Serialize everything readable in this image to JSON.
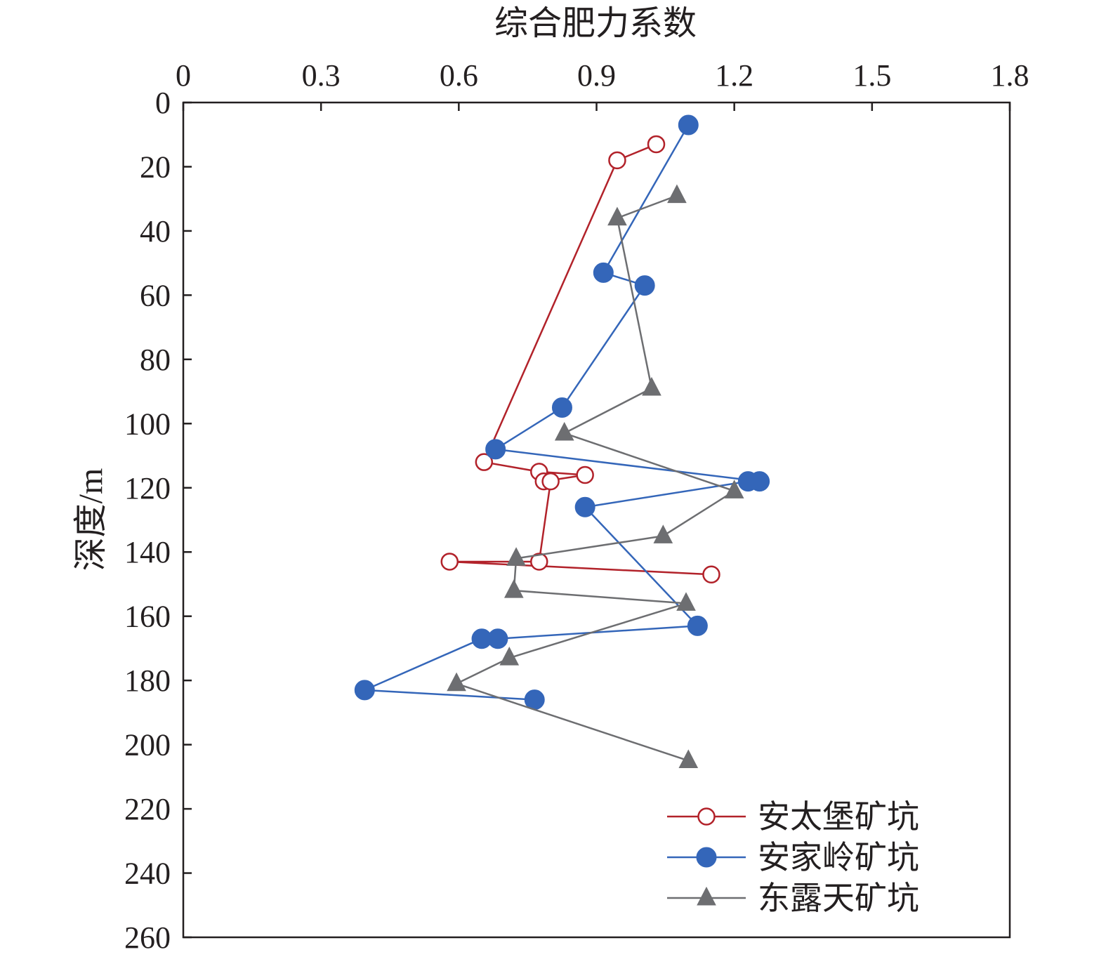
{
  "chart_data": {
    "type": "line",
    "title": "",
    "xlabel": "综合肥力系数",
    "ylabel": "深度/m",
    "xlim": [
      0,
      1.8
    ],
    "ylim": [
      0,
      260
    ],
    "y_inverted": true,
    "x_axis_position": "top",
    "x_ticks": [
      "0",
      "0.3",
      "0.6",
      "0.9",
      "1.2",
      "1.5",
      "1.8"
    ],
    "y_ticks": [
      "0",
      "20",
      "40",
      "60",
      "80",
      "100",
      "120",
      "140",
      "160",
      "180",
      "200",
      "220",
      "240",
      "260"
    ],
    "grid": false,
    "legend_position": "bottom-right",
    "series": [
      {
        "name": "安太堡矿坑",
        "color": "#b2222a",
        "marker": "open-circle",
        "points": [
          {
            "x": 1.03,
            "y": 13
          },
          {
            "x": 0.945,
            "y": 18
          },
          {
            "x": 0.655,
            "y": 112
          },
          {
            "x": 0.775,
            "y": 115
          },
          {
            "x": 0.875,
            "y": 116
          },
          {
            "x": 0.785,
            "y": 118
          },
          {
            "x": 0.8,
            "y": 118
          },
          {
            "x": 0.775,
            "y": 143
          },
          {
            "x": 0.58,
            "y": 143
          },
          {
            "x": 1.15,
            "y": 147
          }
        ]
      },
      {
        "name": "安家岭矿坑",
        "color": "#3466b9",
        "marker": "filled-circle",
        "points": [
          {
            "x": 1.1,
            "y": 7
          },
          {
            "x": 0.915,
            "y": 53
          },
          {
            "x": 1.005,
            "y": 57
          },
          {
            "x": 0.825,
            "y": 95
          },
          {
            "x": 0.68,
            "y": 108
          },
          {
            "x": 1.255,
            "y": 118
          },
          {
            "x": 1.23,
            "y": 118
          },
          {
            "x": 0.875,
            "y": 126
          },
          {
            "x": 1.12,
            "y": 163
          },
          {
            "x": 0.685,
            "y": 167
          },
          {
            "x": 0.65,
            "y": 167
          },
          {
            "x": 0.395,
            "y": 183
          },
          {
            "x": 0.765,
            "y": 186
          }
        ]
      },
      {
        "name": "东露天矿坑",
        "color": "#6d6e71",
        "marker": "filled-triangle",
        "points": [
          {
            "x": 1.075,
            "y": 29
          },
          {
            "x": 0.945,
            "y": 36
          },
          {
            "x": 1.02,
            "y": 89
          },
          {
            "x": 0.83,
            "y": 103
          },
          {
            "x": 1.2,
            "y": 121
          },
          {
            "x": 1.045,
            "y": 135
          },
          {
            "x": 0.725,
            "y": 142
          },
          {
            "x": 0.72,
            "y": 152
          },
          {
            "x": 1.095,
            "y": 156
          },
          {
            "x": 0.71,
            "y": 173
          },
          {
            "x": 0.595,
            "y": 181
          },
          {
            "x": 1.1,
            "y": 205
          }
        ]
      }
    ]
  }
}
